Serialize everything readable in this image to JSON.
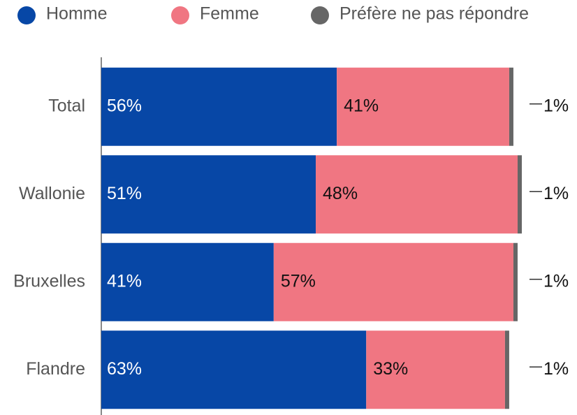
{
  "chart_data": {
    "type": "stacked-barh",
    "categories": [
      "Total",
      "Wallonie",
      "Bruxelles",
      "Flandre"
    ],
    "series": [
      {
        "name": "Homme",
        "color": "#0747a6",
        "values": [
          56,
          51,
          41,
          63
        ],
        "value_labels": [
          "56%",
          "51%",
          "41%",
          "63%"
        ]
      },
      {
        "name": "Femme",
        "color": "#f07682",
        "values": [
          41,
          48,
          57,
          33
        ],
        "value_labels": [
          "41%",
          "48%",
          "57%",
          "33%"
        ]
      },
      {
        "name": "Préfère ne pas répondre",
        "color": "#666666",
        "values": [
          1,
          1,
          1,
          1
        ],
        "value_labels": [
          "1%",
          "1%",
          "1%",
          "1%"
        ]
      }
    ],
    "xlim": [
      0,
      100
    ],
    "legend": "top"
  }
}
